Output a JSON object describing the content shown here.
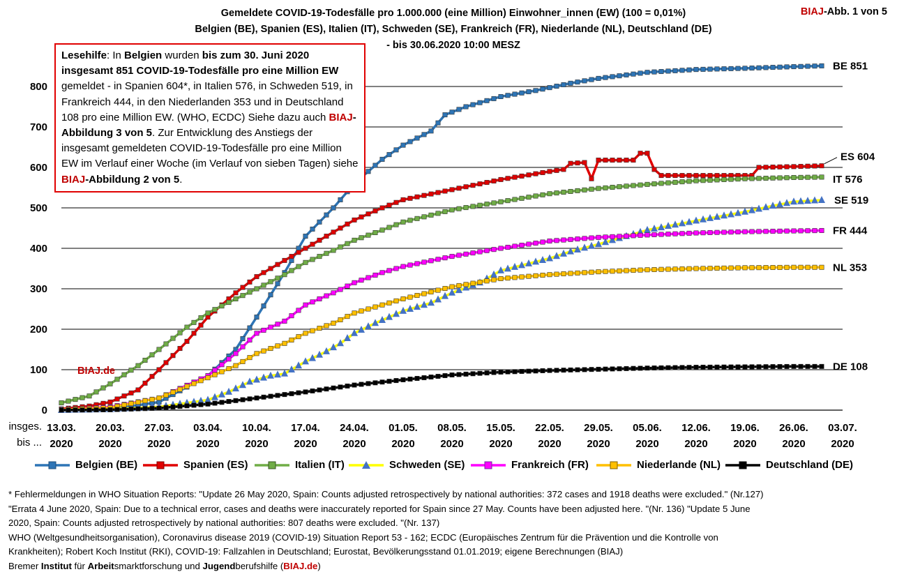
{
  "header": {
    "title_lines": [
      "Gemeldete COVID-19-Todesfälle pro 1.000.000 (eine Million) Einwohner_innen (EW) (100 = 0,01%)",
      "Belgien (BE), Spanien (ES), Italien (IT), Schweden (SE), Frankreich (FR), Niederlande (NL), Deutschland (DE)",
      "- bis 30.06.2020 10:00 MESZ"
    ],
    "fig_brand": "BIAJ",
    "fig_label": "-Abb. 1 von 5"
  },
  "reading_help": {
    "p1": "Lesehilfe",
    "p2": ": In ",
    "p3": "Belgien",
    "p4": " wurden ",
    "p5": "bis zum 30. Juni 2020 insgesamt 851 COVID-19-Todesfälle pro eine Million EW",
    "p6": " gemeldet  - in Spanien 604*, in Italien 576, in Schweden 519, in Frankreich 444, in den Niederlanden 353 und in Deutschland 108 pro eine Million EW. (WHO, ECDC) Siehe dazu auch ",
    "p7": "BIAJ",
    "p8": "-Abbildung 3 von 5",
    "p9": ". Zur Entwicklung des Anstiegs der insgesamt gemeldeten  COVID-19-Todesfälle pro eine Million  EW im Verlauf einer Woche (im Verlauf von sieben Tagen) siehe ",
    "p10": "BIAJ",
    "p11": "-Abbildung 2 von 5",
    "p12": "."
  },
  "watermark": "BIAJ.de",
  "x_axis_caption": [
    "insges.",
    "bis ..."
  ],
  "chart_data": {
    "type": "line",
    "ylim": [
      0,
      900
    ],
    "yticks": [
      "0",
      "100",
      "200",
      "300",
      "400",
      "500",
      "600",
      "700",
      "800"
    ],
    "grid": "horizontal",
    "x_start": "13.03.2020",
    "x_end": "03.07.2020",
    "xtick_labels": [
      [
        "13.03.",
        "2020"
      ],
      [
        "20.03.",
        "2020"
      ],
      [
        "27.03.",
        "2020"
      ],
      [
        "03.04.",
        "2020"
      ],
      [
        "10.04.",
        "2020"
      ],
      [
        "17.04.",
        "2020"
      ],
      [
        "24.04.",
        "2020"
      ],
      [
        "01.05.",
        "2020"
      ],
      [
        "08.05.",
        "2020"
      ],
      [
        "15.05.",
        "2020"
      ],
      [
        "22.05.",
        "2020"
      ],
      [
        "29.05.",
        "2020"
      ],
      [
        "05.06.",
        "2020"
      ],
      [
        "12.06.",
        "2020"
      ],
      [
        "19.06.",
        "2020"
      ],
      [
        "26.06.",
        "2020"
      ],
      [
        "03.07.",
        "2020"
      ]
    ],
    "series": [
      {
        "name": "Belgien (BE)",
        "end_label": "BE 851",
        "color": "#2e75b6",
        "marker": "square",
        "line_width": 3.5,
        "start": "13.03.2020",
        "end": "30.06.2020",
        "keys": [
          [
            "13.03.2020",
            1
          ],
          [
            "20.03.2020",
            2
          ],
          [
            "27.03.2020",
            20
          ],
          [
            "03.04.2020",
            85
          ],
          [
            "07.04.2020",
            150
          ],
          [
            "10.04.2020",
            230
          ],
          [
            "14.04.2020",
            340
          ],
          [
            "17.04.2020",
            430
          ],
          [
            "21.04.2020",
            500
          ],
          [
            "24.04.2020",
            560
          ],
          [
            "28.04.2020",
            620
          ],
          [
            "01.05.2020",
            655
          ],
          [
            "05.05.2020",
            690
          ],
          [
            "07.05.2020",
            730
          ],
          [
            "10.05.2020",
            750
          ],
          [
            "15.05.2020",
            775
          ],
          [
            "20.05.2020",
            790
          ],
          [
            "25.05.2020",
            808
          ],
          [
            "29.05.2020",
            820
          ],
          [
            "05.06.2020",
            835
          ],
          [
            "12.06.2020",
            842
          ],
          [
            "19.06.2020",
            845
          ],
          [
            "26.06.2020",
            849
          ],
          [
            "30.06.2020",
            851
          ]
        ]
      },
      {
        "name": "Spanien (ES)",
        "end_label": "ES 604",
        "color": "#e00000",
        "marker": "square",
        "line_width": 3.5,
        "start": "13.03.2020",
        "end": "30.06.2020",
        "keys": [
          [
            "13.03.2020",
            3
          ],
          [
            "17.03.2020",
            10
          ],
          [
            "20.03.2020",
            20
          ],
          [
            "24.03.2020",
            50
          ],
          [
            "27.03.2020",
            100
          ],
          [
            "31.03.2020",
            170
          ],
          [
            "03.04.2020",
            230
          ],
          [
            "07.04.2020",
            290
          ],
          [
            "10.04.2020",
            330
          ],
          [
            "14.04.2020",
            370
          ],
          [
            "17.04.2020",
            400
          ],
          [
            "21.04.2020",
            440
          ],
          [
            "24.04.2020",
            470
          ],
          [
            "28.04.2020",
            500
          ],
          [
            "01.05.2020",
            520
          ],
          [
            "08.05.2020",
            545
          ],
          [
            "15.05.2020",
            570
          ],
          [
            "22.05.2020",
            590
          ],
          [
            "24.05.2020",
            595
          ],
          [
            "25.05.2020",
            610
          ],
          [
            "27.05.2020",
            612
          ],
          [
            "28.05.2020",
            572
          ],
          [
            "29.05.2020",
            618
          ],
          [
            "03.06.2020",
            618
          ],
          [
            "04.06.2020",
            635
          ],
          [
            "05.06.2020",
            635
          ],
          [
            "06.06.2020",
            595
          ],
          [
            "07.06.2020",
            580
          ],
          [
            "12.06.2020",
            580
          ],
          [
            "19.06.2020",
            580
          ],
          [
            "20.06.2020",
            580
          ],
          [
            "21.06.2020",
            600
          ],
          [
            "26.06.2020",
            602
          ],
          [
            "30.06.2020",
            604
          ]
        ]
      },
      {
        "name": "Italien (IT)",
        "end_label": "IT 576",
        "color": "#70ad47",
        "marker": "square",
        "line_width": 3.5,
        "start": "13.03.2020",
        "end": "30.06.2020",
        "keys": [
          [
            "13.03.2020",
            18
          ],
          [
            "17.03.2020",
            35
          ],
          [
            "20.03.2020",
            65
          ],
          [
            "24.03.2020",
            110
          ],
          [
            "27.03.2020",
            150
          ],
          [
            "31.03.2020",
            205
          ],
          [
            "03.04.2020",
            240
          ],
          [
            "07.04.2020",
            275
          ],
          [
            "10.04.2020",
            300
          ],
          [
            "14.04.2020",
            335
          ],
          [
            "17.04.2020",
            365
          ],
          [
            "21.04.2020",
            395
          ],
          [
            "24.04.2020",
            420
          ],
          [
            "28.04.2020",
            445
          ],
          [
            "01.05.2020",
            465
          ],
          [
            "08.05.2020",
            495
          ],
          [
            "15.05.2020",
            515
          ],
          [
            "22.05.2020",
            535
          ],
          [
            "29.05.2020",
            548
          ],
          [
            "05.06.2020",
            558
          ],
          [
            "12.06.2020",
            567
          ],
          [
            "19.06.2020",
            572
          ],
          [
            "26.06.2020",
            575
          ],
          [
            "30.06.2020",
            576
          ]
        ]
      },
      {
        "name": "Schweden (SE)",
        "end_label": "SE  519",
        "color": "#ffff00",
        "marker_color": "#4472c4",
        "marker": "triangle",
        "line_width": 3.5,
        "start": "13.03.2020",
        "end": "30.06.2020",
        "keys": [
          [
            "13.03.2020",
            0
          ],
          [
            "20.03.2020",
            2
          ],
          [
            "27.03.2020",
            8
          ],
          [
            "03.04.2020",
            25
          ],
          [
            "06.04.2020",
            45
          ],
          [
            "09.04.2020",
            70
          ],
          [
            "12.04.2020",
            85
          ],
          [
            "14.04.2020",
            90
          ],
          [
            "17.04.2020",
            120
          ],
          [
            "20.04.2020",
            145
          ],
          [
            "22.04.2020",
            165
          ],
          [
            "24.04.2020",
            190
          ],
          [
            "27.04.2020",
            215
          ],
          [
            "01.05.2020",
            245
          ],
          [
            "05.05.2020",
            265
          ],
          [
            "08.05.2020",
            290
          ],
          [
            "12.05.2020",
            315
          ],
          [
            "15.05.2020",
            345
          ],
          [
            "18.05.2020",
            358
          ],
          [
            "22.05.2020",
            375
          ],
          [
            "25.05.2020",
            392
          ],
          [
            "29.05.2020",
            410
          ],
          [
            "01.06.2020",
            425
          ],
          [
            "05.06.2020",
            445
          ],
          [
            "12.06.2020",
            468
          ],
          [
            "19.06.2020",
            490
          ],
          [
            "23.06.2020",
            505
          ],
          [
            "26.06.2020",
            515
          ],
          [
            "30.06.2020",
            519
          ]
        ]
      },
      {
        "name": "Frankreich (FR)",
        "end_label": "FR 444",
        "color": "#ff00ff",
        "marker": "square",
        "line_width": 3.5,
        "start": "13.03.2020",
        "end": "30.06.2020",
        "keys": [
          [
            "13.03.2020",
            1
          ],
          [
            "20.03.2020",
            8
          ],
          [
            "27.03.2020",
            30
          ],
          [
            "03.04.2020",
            85
          ],
          [
            "07.04.2020",
            140
          ],
          [
            "10.04.2020",
            190
          ],
          [
            "14.04.2020",
            220
          ],
          [
            "17.04.2020",
            260
          ],
          [
            "21.04.2020",
            290
          ],
          [
            "24.04.2020",
            315
          ],
          [
            "28.04.2020",
            340
          ],
          [
            "01.05.2020",
            355
          ],
          [
            "08.05.2020",
            380
          ],
          [
            "15.05.2020",
            400
          ],
          [
            "22.05.2020",
            418
          ],
          [
            "29.05.2020",
            427
          ],
          [
            "05.06.2020",
            433
          ],
          [
            "12.06.2020",
            438
          ],
          [
            "19.06.2020",
            441
          ],
          [
            "26.06.2020",
            443
          ],
          [
            "30.06.2020",
            444
          ]
        ]
      },
      {
        "name": "Niederlande (NL)",
        "end_label": "NL 353",
        "color": "#ffc000",
        "marker": "square",
        "line_width": 3.5,
        "start": "13.03.2020",
        "end": "30.06.2020",
        "keys": [
          [
            "13.03.2020",
            1
          ],
          [
            "20.03.2020",
            6
          ],
          [
            "27.03.2020",
            30
          ],
          [
            "03.04.2020",
            80
          ],
          [
            "07.04.2020",
            110
          ],
          [
            "10.04.2020",
            140
          ],
          [
            "14.04.2020",
            165
          ],
          [
            "17.04.2020",
            190
          ],
          [
            "21.04.2020",
            215
          ],
          [
            "24.04.2020",
            240
          ],
          [
            "28.04.2020",
            260
          ],
          [
            "01.05.2020",
            275
          ],
          [
            "08.05.2020",
            305
          ],
          [
            "15.05.2020",
            325
          ],
          [
            "22.05.2020",
            335
          ],
          [
            "29.05.2020",
            342
          ],
          [
            "05.06.2020",
            347
          ],
          [
            "12.06.2020",
            350
          ],
          [
            "19.06.2020",
            352
          ],
          [
            "26.06.2020",
            353
          ],
          [
            "30.06.2020",
            353
          ]
        ]
      },
      {
        "name": "Deutschland (DE)",
        "end_label": "DE 108",
        "color": "#000000",
        "marker": "square",
        "line_width": 3.5,
        "start": "13.03.2020",
        "end": "30.06.2020",
        "keys": [
          [
            "13.03.2020",
            0
          ],
          [
            "20.03.2020",
            1
          ],
          [
            "27.03.2020",
            5
          ],
          [
            "03.04.2020",
            15
          ],
          [
            "10.04.2020",
            30
          ],
          [
            "17.04.2020",
            45
          ],
          [
            "24.04.2020",
            62
          ],
          [
            "01.05.2020",
            75
          ],
          [
            "08.05.2020",
            87
          ],
          [
            "15.05.2020",
            94
          ],
          [
            "22.05.2020",
            98
          ],
          [
            "29.05.2020",
            101
          ],
          [
            "05.06.2020",
            104
          ],
          [
            "12.06.2020",
            106
          ],
          [
            "19.06.2020",
            107
          ],
          [
            "26.06.2020",
            108
          ],
          [
            "30.06.2020",
            108
          ]
        ]
      }
    ]
  },
  "footnotes": [
    "* Fehlermeldungen in WHO Situation Reports: \"Update 26 May 2020, Spain: Counts adjusted retrospectively by national authorities: 372 cases and 1918 deaths were excluded.\" (Nr.127)",
    "\"Errata 4 June 2020, Spain: Due to a technical error, cases and deaths were inaccurately reported for Spain since 27 May. Counts have been adjusted here. \"(Nr. 136) \"Update 5 June",
    "2020, Spain: Counts adjusted retrospectively by national authorities: 807 deaths were excluded. \"(Nr. 137)",
    "WHO (Weltgesundheitsorganisation), Coronavirus disease 2019 (COVID-19) Situation Report 53 - 162;  ECDC (Europäisches Zentrum für die Prävention und die Kontrolle von",
    "Krankheiten); Robert Koch Institut (RKI), COVID-19: Fallzahlen in Deutschland;  Eurostat, Bevölkerungsstand 01.01.2019; eigene Berechnungen (BIAJ)"
  ],
  "institute": {
    "t1": "Bremer ",
    "t2": "Institut",
    "t3": " für ",
    "t4": "Arbeit",
    "t5": "smarktforschung und ",
    "t6": "Jugend",
    "t7": "berufshilfe (",
    "t8": "BIAJ.de",
    "t9": ")"
  }
}
